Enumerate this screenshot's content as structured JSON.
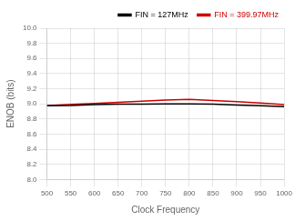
{
  "chart_data": {
    "type": "line",
    "xlabel": "Clock Frequency",
    "ylabel": "ENOB (bits)",
    "x": [
      500,
      550,
      600,
      650,
      700,
      750,
      800,
      850,
      900,
      950,
      1000
    ],
    "series": [
      {
        "name": "FIN = 127MHz",
        "color": "#000000",
        "values": [
          8.975,
          8.978,
          8.99,
          8.995,
          8.997,
          8.998,
          8.998,
          8.995,
          8.985,
          8.975,
          8.962
        ]
      },
      {
        "name": "FIN = 399.97MHz",
        "color": "#cc0000",
        "values": [
          8.975,
          8.993,
          9.005,
          9.02,
          9.035,
          9.05,
          9.06,
          9.045,
          9.03,
          9.01,
          8.99
        ]
      }
    ],
    "xlim": [
      500,
      1000
    ],
    "ylim": [
      8.0,
      10.0
    ],
    "xticks": [
      500,
      550,
      600,
      650,
      700,
      750,
      800,
      850,
      900,
      950,
      1000
    ],
    "yticks": [
      {
        "value": 8.0,
        "label": "8.0"
      },
      8.2,
      8.4,
      8.6,
      8.8,
      {
        "value": 9.0,
        "label": "9.0"
      },
      9.2,
      9.4,
      9.6,
      9.8,
      {
        "value": 10.0,
        "label": "10.0"
      }
    ],
    "grid": true,
    "legend": "upper right"
  }
}
